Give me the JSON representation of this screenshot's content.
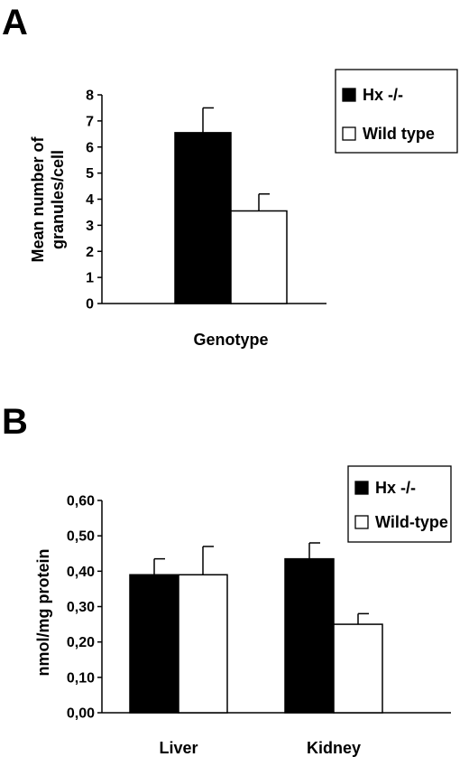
{
  "chart_data": [
    {
      "panel": "A",
      "type": "bar",
      "xlabel": "Genotype",
      "ylabel_lines": [
        "Mean number of",
        "granules/cell"
      ],
      "ylim": [
        0,
        8
      ],
      "yticks": [
        "0",
        "1",
        "2",
        "3",
        "4",
        "5",
        "6",
        "7",
        "8"
      ],
      "categories": [
        ""
      ],
      "legend_position": "top-right",
      "grid": false,
      "series": [
        {
          "name": "Hx -/-",
          "color": "#000000",
          "values": [
            6.55
          ],
          "errors": [
            0.95
          ]
        },
        {
          "name": "Wild type",
          "color": "#ffffff",
          "values": [
            3.55
          ],
          "errors": [
            0.65
          ]
        }
      ]
    },
    {
      "panel": "B",
      "type": "bar",
      "xlabel": "",
      "ylabel_lines": [
        "nmol/mg protein"
      ],
      "ylim": [
        0,
        0.6
      ],
      "yticks": [
        "0,00",
        "0,10",
        "0,20",
        "0,30",
        "0,40",
        "0,50",
        "0,60"
      ],
      "categories": [
        "Liver",
        "Kidney"
      ],
      "legend_position": "top-right",
      "grid": false,
      "series": [
        {
          "name": "Hx -/-",
          "color": "#000000",
          "values": [
            0.39,
            0.435
          ],
          "errors": [
            0.045,
            0.045
          ]
        },
        {
          "name": "Wild-type",
          "color": "#ffffff",
          "values": [
            0.39,
            0.25
          ],
          "errors": [
            0.08,
            0.03
          ]
        }
      ]
    }
  ]
}
